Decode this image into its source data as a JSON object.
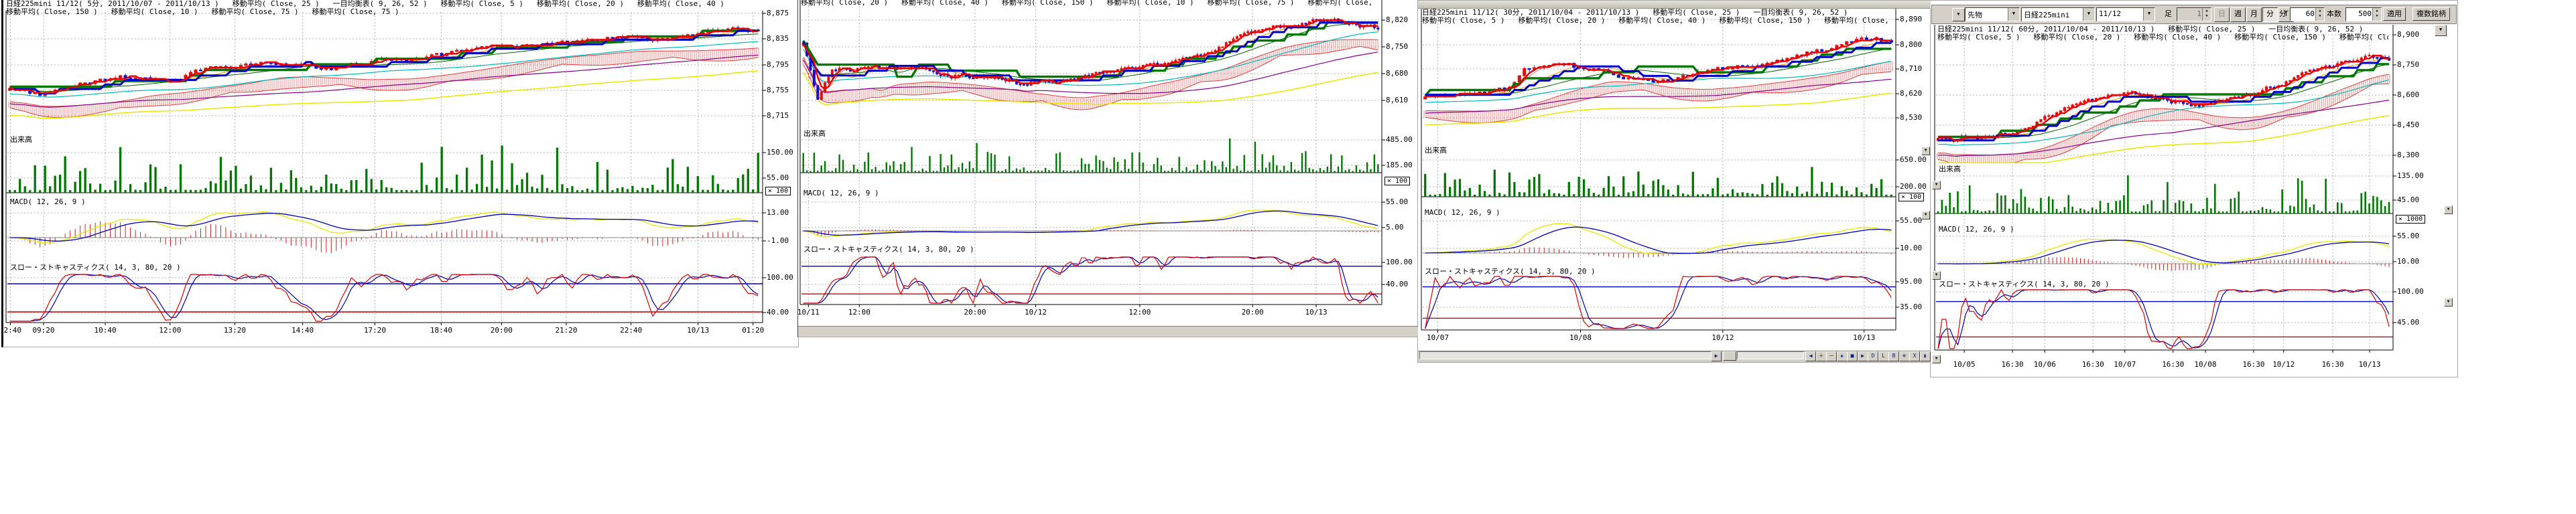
{
  "toolbar": {
    "window_button": "▼",
    "category": "先物",
    "symbol": "日経225mini",
    "contract": "11/12",
    "bar_label": "足",
    "bar_value": "1",
    "period_buttons": [
      "日",
      "週",
      "月",
      "分",
      "T"
    ],
    "period_names": [
      "day",
      "week",
      "month",
      "minute",
      "tick"
    ],
    "active_period": "分",
    "unit_label": "分",
    "unit_value": "60",
    "count_label": "本数",
    "count_value": "500",
    "apply": "適用",
    "multi": "複数銘柄"
  },
  "widgets": {
    "dropdown_arrow": "▼",
    "strip_buttons": [
      "◀",
      "＋",
      "－",
      "✚",
      "■",
      "▶",
      "D",
      "L",
      "B",
      "⊕",
      "X",
      "▮"
    ]
  },
  "colors": {
    "up": "#dd1111",
    "down": "#1111cc",
    "volume": "#007700",
    "macd_line": "#e8e800",
    "macd_signal": "#0000bb",
    "hist": "#cc2222",
    "stoch_k": "#dd0000",
    "stoch_d": "#0000bb",
    "level_high": "#0000cc",
    "level_low": "#cc0000",
    "thick_red": "#ee0000",
    "thick_blue": "#0000cc",
    "thick_green": "#007700",
    "cloud": "#e04040",
    "grid": "#b0b0b0"
  },
  "charts": [
    {
      "id": "c1",
      "type": "candlestick",
      "legend1": "日経225mini 11/12( 5分, 2011/10/07 - 2011/10/13 )   移動平均( Close, 25 )   一目均衡表( 9, 26, 52 )   移動平均( Close, 5 )   移動平均( Close, 20 )   移動平均( Close, 40 )",
      "legend2": "移動平均( Close, 150 )   移動平均( Close, 10 )   移動平均( Close, 75 )   移動平均( Close, 75 )",
      "volume_label": "出来高",
      "macd_label": "MACD( 12, 26, 9 )",
      "stoch_label": "スロー・ストキャスティクス( 14, 3, 80, 20 )",
      "price_axis": [
        "8,875",
        "8,835",
        "8,795",
        "8,755",
        "8,715"
      ],
      "volume_axis": [
        "150.00",
        "55.00"
      ],
      "volume_mult": "× 100",
      "macd_axis": [
        "13.00",
        "-1.00"
      ],
      "stoch_axis": [
        "100.00",
        "40.00"
      ],
      "x_labels": [
        "02:40",
        "09:20",
        "10:40",
        "12:00",
        "13:20",
        "14:40",
        "17:20",
        "18:40",
        "20:00",
        "21:20",
        "22:40",
        "10/13",
        "01:20"
      ],
      "trend": [
        [
          0,
          0.62
        ],
        [
          0.04,
          0.7
        ],
        [
          0.09,
          0.58
        ],
        [
          0.15,
          0.52
        ],
        [
          0.21,
          0.6
        ],
        [
          0.27,
          0.44
        ],
        [
          0.34,
          0.4
        ],
        [
          0.42,
          0.43
        ],
        [
          0.5,
          0.37
        ],
        [
          0.58,
          0.35
        ],
        [
          0.64,
          0.27
        ],
        [
          0.72,
          0.24
        ],
        [
          0.8,
          0.21
        ],
        [
          0.88,
          0.19
        ],
        [
          0.94,
          0.11
        ],
        [
          1,
          0.09
        ]
      ]
    },
    {
      "id": "c2",
      "type": "candlestick",
      "legend1": "移動平均( Close, 20 )   移動平均( Close, 40 )   移動平均( Close, 150 )   移動平均( Close, 10 )   移動平均( Close, 75 )   移動平均( Close, 75 )",
      "volume_label": "出来高",
      "macd_label": "MACD( 12, 26, 9 )",
      "stoch_label": "スロー・ストキャスティクス( 14, 3, 80, 20 )",
      "price_axis": [
        "8,820",
        "8,750",
        "8,680",
        "8,610"
      ],
      "volume_axis": [
        "485.00",
        "185.00"
      ],
      "volume_mult": "× 100",
      "macd_axis": [
        "55.00",
        "5.00"
      ],
      "stoch_axis": [
        "100.00",
        "40.00"
      ],
      "x_labels": [
        "10/11",
        "12:00",
        "20:00",
        "10/12",
        "12:00",
        "20:00",
        "10/13"
      ],
      "trend": [
        [
          0,
          0.3
        ],
        [
          0.025,
          0.78
        ],
        [
          0.05,
          0.52
        ],
        [
          0.12,
          0.48
        ],
        [
          0.2,
          0.54
        ],
        [
          0.3,
          0.58
        ],
        [
          0.38,
          0.63
        ],
        [
          0.45,
          0.6
        ],
        [
          0.52,
          0.53
        ],
        [
          0.6,
          0.47
        ],
        [
          0.68,
          0.4
        ],
        [
          0.75,
          0.28
        ],
        [
          0.82,
          0.18
        ],
        [
          0.9,
          0.1
        ],
        [
          0.96,
          0.14
        ],
        [
          1,
          0.17
        ]
      ]
    },
    {
      "id": "c3",
      "type": "candlestick",
      "legend1": "日経225mini 11/12( 30分, 2011/10/04 - 2011/10/13 )   移動平均( Close, 25 )   一目均衡表( 9, 26, 52 )",
      "legend2": "移動平均( Close, 5 )   移動平均( Close, 20 )   移動平均( Close, 40 )   移動平均( Close, 150 )   移動平均( Close, 10 )",
      "volume_label": "出来高",
      "macd_label": "MACD( 12, 26, 9 )",
      "stoch_label": "スロー・ストキャスティクス( 14, 3, 80, 20 )",
      "price_axis": [
        "8,890",
        "8,800",
        "8,710",
        "8,620",
        "8,530"
      ],
      "volume_axis": [
        "650.00",
        "200.00"
      ],
      "volume_mult": "× 100",
      "macd_axis": [
        "55.00",
        "10.00"
      ],
      "stoch_axis": [
        "95.00",
        "35.00"
      ],
      "x_labels": [
        "10/07",
        "10/08",
        "10/12",
        "10/13"
      ],
      "trend": [
        [
          0,
          0.58
        ],
        [
          0.1,
          0.56
        ],
        [
          0.18,
          0.54
        ],
        [
          0.21,
          0.36
        ],
        [
          0.3,
          0.33
        ],
        [
          0.4,
          0.4
        ],
        [
          0.5,
          0.44
        ],
        [
          0.58,
          0.38
        ],
        [
          0.65,
          0.33
        ],
        [
          0.72,
          0.28
        ],
        [
          0.8,
          0.23
        ],
        [
          0.88,
          0.16
        ],
        [
          0.94,
          0.1
        ],
        [
          1,
          0.13
        ]
      ]
    },
    {
      "id": "c4",
      "type": "candlestick",
      "legend1": "日経225mini 11/12( 60分, 2011/10/04 - 2011/10/13 )   移動平均( Close, 25 )   一目均衡表( 9, 26, 52 )",
      "legend2": "移動平均( Close, 5 )   移動平均( Close, 20 )   移動平均( Close, 40 )   移動平均( Close, 150 )   移動平均( Close, 10 )",
      "volume_label": "出来高",
      "macd_label": "MACD( 12, 26, 9 )",
      "stoch_label": "スロー・ストキャスティクス( 14, 3, 80, 20 )",
      "price_axis": [
        "8,900",
        "8,750",
        "8,600",
        "8,450",
        "8,300"
      ],
      "volume_axis": [
        "135.00",
        "45.00"
      ],
      "volume_mult": "× 1000",
      "macd_axis": [
        "55.00",
        "10.00"
      ],
      "stoch_axis": [
        "100.00",
        "45.00"
      ],
      "x_labels": [
        "10/05",
        "16:30",
        "10/06",
        "16:30",
        "10/07",
        "16:30",
        "10/08",
        "16:30",
        "10/12",
        "16:30",
        "10/13"
      ],
      "trend": [
        [
          0,
          0.8
        ],
        [
          0.08,
          0.76
        ],
        [
          0.15,
          0.72
        ],
        [
          0.25,
          0.6
        ],
        [
          0.33,
          0.48
        ],
        [
          0.42,
          0.42
        ],
        [
          0.5,
          0.46
        ],
        [
          0.58,
          0.48
        ],
        [
          0.65,
          0.43
        ],
        [
          0.72,
          0.38
        ],
        [
          0.8,
          0.28
        ],
        [
          0.88,
          0.16
        ],
        [
          0.94,
          0.1
        ],
        [
          1,
          0.12
        ]
      ]
    }
  ]
}
